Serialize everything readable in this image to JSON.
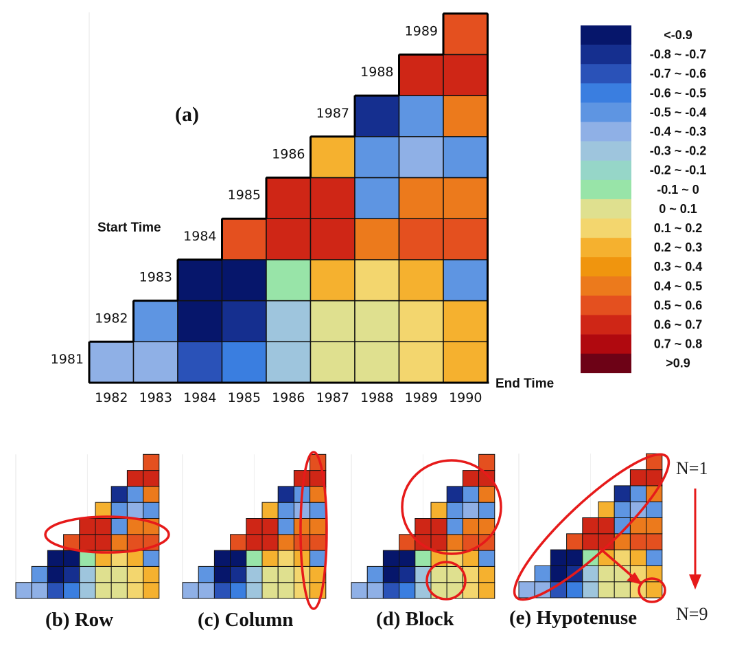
{
  "chart_data": {
    "type": "heatmap",
    "panel_label": "(a)",
    "y_axis_label": "Start Time",
    "x_axis_label": "End Time",
    "start_years": [
      "1981",
      "1982",
      "1983",
      "1984",
      "1985",
      "1986",
      "1987",
      "1988",
      "1989"
    ],
    "end_years": [
      "1982",
      "1983",
      "1984",
      "1985",
      "1986",
      "1987",
      "1988",
      "1989",
      "1990"
    ],
    "cells": [
      [
        5,
        5,
        2,
        3,
        6,
        9,
        9,
        10,
        11
      ],
      [
        null,
        4,
        0,
        1,
        6,
        9,
        9,
        10,
        11
      ],
      [
        null,
        null,
        0,
        0,
        8,
        11,
        10,
        11,
        4
      ],
      [
        null,
        null,
        null,
        14,
        15,
        15,
        13,
        14,
        14
      ],
      [
        null,
        null,
        null,
        null,
        15,
        15,
        4,
        13,
        13
      ],
      [
        null,
        null,
        null,
        null,
        null,
        11,
        4,
        5,
        4
      ],
      [
        null,
        null,
        null,
        null,
        null,
        null,
        1,
        4,
        13
      ],
      [
        null,
        null,
        null,
        null,
        null,
        null,
        null,
        15,
        15
      ],
      [
        null,
        null,
        null,
        null,
        null,
        null,
        null,
        null,
        14
      ]
    ],
    "color_bins": [
      {
        "label": "<-0.9",
        "color": "#06166b"
      },
      {
        "label": "-0.8 ~ -0.7",
        "color": "#152f8f"
      },
      {
        "label": "-0.7 ~ -0.6",
        "color": "#2a52b8"
      },
      {
        "label": "-0.6 ~ -0.5",
        "color": "#3a7ee0"
      },
      {
        "label": "-0.5 ~ -0.4",
        "color": "#5e95e2"
      },
      {
        "label": "-0.4 ~ -0.3",
        "color": "#8fb0e6"
      },
      {
        "label": "-0.3 ~ -0.2",
        "color": "#9ec5dd"
      },
      {
        "label": "-0.2 ~ -0.1",
        "color": "#96d6c8"
      },
      {
        "label": "-0.1 ~ 0",
        "color": "#98e4a8"
      },
      {
        "label": "0 ~ 0.1",
        "color": "#dfe08f"
      },
      {
        "label": "0.1 ~ 0.2",
        "color": "#f3d66e"
      },
      {
        "label": "0.2 ~ 0.3",
        "color": "#f5b12f"
      },
      {
        "label": "0.3 ~ 0.4",
        "color": "#f0950e"
      },
      {
        "label": "0.4 ~ 0.5",
        "color": "#ec7a1c"
      },
      {
        "label": "0.5 ~ 0.6",
        "color": "#e4501f"
      },
      {
        "label": "0.6 ~ 0.7",
        "color": "#cf2616"
      },
      {
        "label": "0.7 ~ 0.8",
        "color": "#b0090f"
      },
      {
        "label": ">0.9",
        "color": "#6d0216"
      }
    ]
  },
  "subfigures": [
    {
      "id": "b",
      "caption": "(b) Row"
    },
    {
      "id": "c",
      "caption": "(c) Column"
    },
    {
      "id": "d",
      "caption": "(d) Block"
    },
    {
      "id": "e",
      "caption": "(e) Hypotenuse"
    }
  ],
  "scan_direction": {
    "top_label": "N=1",
    "bottom_label": "N=9"
  },
  "highlight_color": "#e61a1a"
}
